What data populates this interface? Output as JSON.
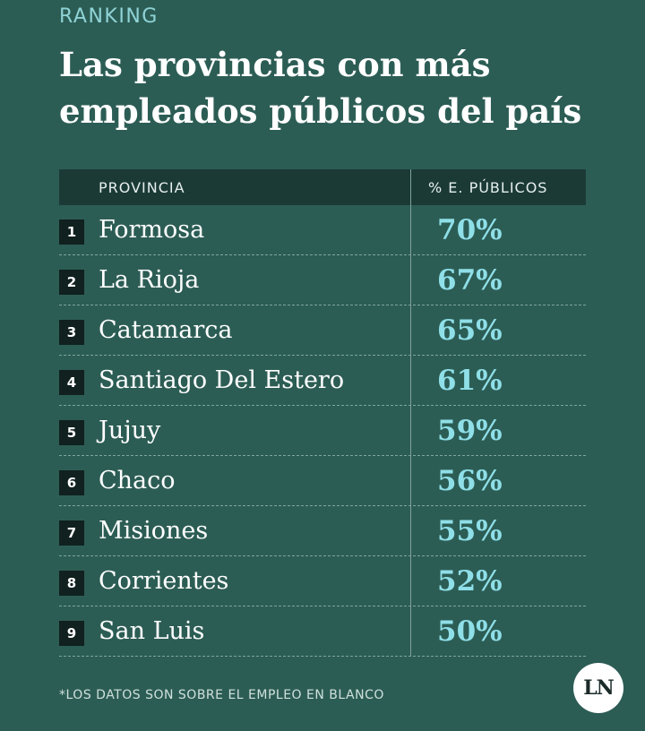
{
  "kicker": "RANKING",
  "title": "Las provincias con más empleados públicos del país",
  "table": {
    "headers": {
      "province": "PROVINCIA",
      "percent": "% E. PÚBLICOS"
    },
    "rows": [
      {
        "rank": "1",
        "province": "Formosa",
        "percent": "70%"
      },
      {
        "rank": "2",
        "province": "La Rioja",
        "percent": "67%"
      },
      {
        "rank": "3",
        "province": "Catamarca",
        "percent": "65%"
      },
      {
        "rank": "4",
        "province": "Santiago Del Estero",
        "percent": "61%"
      },
      {
        "rank": "5",
        "province": "Jujuy",
        "percent": "59%"
      },
      {
        "rank": "6",
        "province": "Chaco",
        "percent": "56%"
      },
      {
        "rank": "7",
        "province": "Misiones",
        "percent": "55%"
      },
      {
        "rank": "8",
        "province": "Corrientes",
        "percent": "52%"
      },
      {
        "rank": "9",
        "province": "San Luis",
        "percent": "50%"
      }
    ]
  },
  "footnote": "*LOS DATOS SON SOBRE EL EMPLEO EN BLANCO",
  "logo": {
    "text": "LN"
  },
  "colors": {
    "background": "#2c5d55",
    "header_bg": "#1b3a36",
    "accent": "#8fdfe8"
  }
}
